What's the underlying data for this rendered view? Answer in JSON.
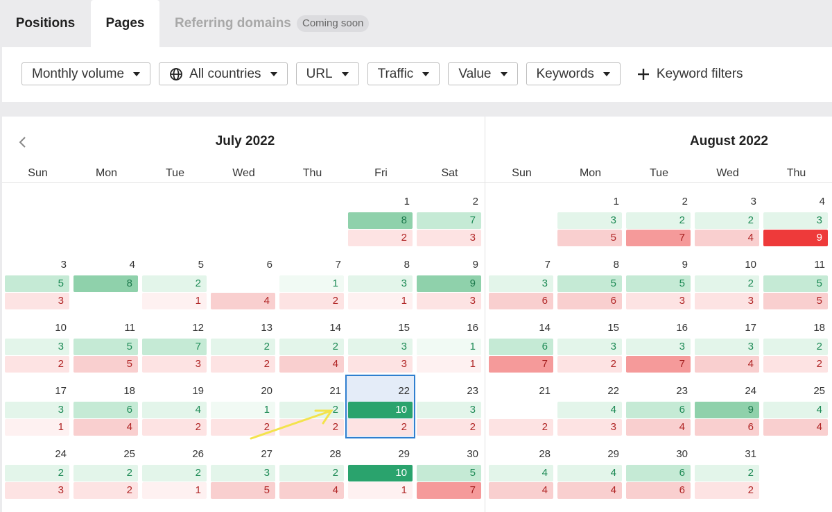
{
  "tabs": {
    "positions": "Positions",
    "pages": "Pages",
    "referring_domains": "Referring domains",
    "badge": "Coming soon"
  },
  "filters": [
    "Monthly volume",
    "All countries",
    "URL",
    "Traffic",
    "Value",
    "Keywords"
  ],
  "add_filter": "Keyword filters",
  "calendars": [
    {
      "title": "July 2022",
      "weekdays": [
        "Sun",
        "Mon",
        "Tue",
        "Wed",
        "Thu",
        "Fri",
        "Sat"
      ],
      "weeks": [
        [
          null,
          null,
          null,
          null,
          null,
          {
            "day": 1,
            "gain": 8,
            "loss": 2
          },
          {
            "day": 2,
            "gain": 7,
            "loss": 3
          }
        ],
        [
          {
            "day": 3,
            "gain": 5,
            "loss": 3
          },
          {
            "day": 4,
            "gain": 8,
            "loss": null
          },
          {
            "day": 5,
            "gain": 2,
            "loss": 1
          },
          {
            "day": 6,
            "gain": null,
            "loss": 4
          },
          {
            "day": 7,
            "gain": 1,
            "loss": 2
          },
          {
            "day": 8,
            "gain": 3,
            "loss": 1
          },
          {
            "day": 9,
            "gain": 9,
            "loss": 3
          }
        ],
        [
          {
            "day": 10,
            "gain": 3,
            "loss": 2
          },
          {
            "day": 11,
            "gain": 5,
            "loss": 5
          },
          {
            "day": 12,
            "gain": 7,
            "loss": 3
          },
          {
            "day": 13,
            "gain": 2,
            "loss": 2
          },
          {
            "day": 14,
            "gain": 2,
            "loss": 4
          },
          {
            "day": 15,
            "gain": 3,
            "loss": 3
          },
          {
            "day": 16,
            "gain": 1,
            "loss": 1
          }
        ],
        [
          {
            "day": 17,
            "gain": 3,
            "loss": 1
          },
          {
            "day": 18,
            "gain": 6,
            "loss": 4
          },
          {
            "day": 19,
            "gain": 4,
            "loss": 2
          },
          {
            "day": 20,
            "gain": 1,
            "loss": 2
          },
          {
            "day": 21,
            "gain": 2,
            "loss": 2
          },
          {
            "day": 22,
            "gain": 10,
            "loss": 2,
            "selected": true
          },
          {
            "day": 23,
            "gain": 3,
            "loss": 2
          }
        ],
        [
          {
            "day": 24,
            "gain": 2,
            "loss": 3
          },
          {
            "day": 25,
            "gain": 2,
            "loss": 2
          },
          {
            "day": 26,
            "gain": 2,
            "loss": 1
          },
          {
            "day": 27,
            "gain": 3,
            "loss": 5
          },
          {
            "day": 28,
            "gain": 2,
            "loss": 4
          },
          {
            "day": 29,
            "gain": 10,
            "loss": 1
          },
          {
            "day": 30,
            "gain": 5,
            "loss": 7
          }
        ]
      ]
    },
    {
      "title": "August 2022",
      "weekdays": [
        "Sun",
        "Mon",
        "Tue",
        "Wed",
        "Thu"
      ],
      "weeks": [
        [
          null,
          {
            "day": 1,
            "gain": 3,
            "loss": 5
          },
          {
            "day": 2,
            "gain": 2,
            "loss": 7
          },
          {
            "day": 3,
            "gain": 2,
            "loss": 4
          },
          {
            "day": 4,
            "gain": 3,
            "loss": 9
          }
        ],
        [
          {
            "day": 7,
            "gain": 3,
            "loss": 6
          },
          {
            "day": 8,
            "gain": 5,
            "loss": 6
          },
          {
            "day": 9,
            "gain": 5,
            "loss": 3
          },
          {
            "day": 10,
            "gain": 2,
            "loss": 3
          },
          {
            "day": 11,
            "gain": 5,
            "loss": 5
          }
        ],
        [
          {
            "day": 14,
            "gain": 6,
            "loss": 7
          },
          {
            "day": 15,
            "gain": 3,
            "loss": 2
          },
          {
            "day": 16,
            "gain": 3,
            "loss": 7
          },
          {
            "day": 17,
            "gain": 3,
            "loss": 4
          },
          {
            "day": 18,
            "gain": 2,
            "loss": 2
          }
        ],
        [
          {
            "day": 21,
            "gain": null,
            "loss": 2
          },
          {
            "day": 22,
            "gain": 4,
            "loss": 3
          },
          {
            "day": 23,
            "gain": 6,
            "loss": 4
          },
          {
            "day": 24,
            "gain": 9,
            "loss": 6
          },
          {
            "day": 25,
            "gain": 4,
            "loss": 4
          }
        ],
        [
          {
            "day": 28,
            "gain": 4,
            "loss": 4
          },
          {
            "day": 29,
            "gain": 4,
            "loss": 4
          },
          {
            "day": 30,
            "gain": 6,
            "loss": 6
          },
          {
            "day": 31,
            "gain": 2,
            "loss": 2
          },
          null
        ]
      ]
    }
  ]
}
